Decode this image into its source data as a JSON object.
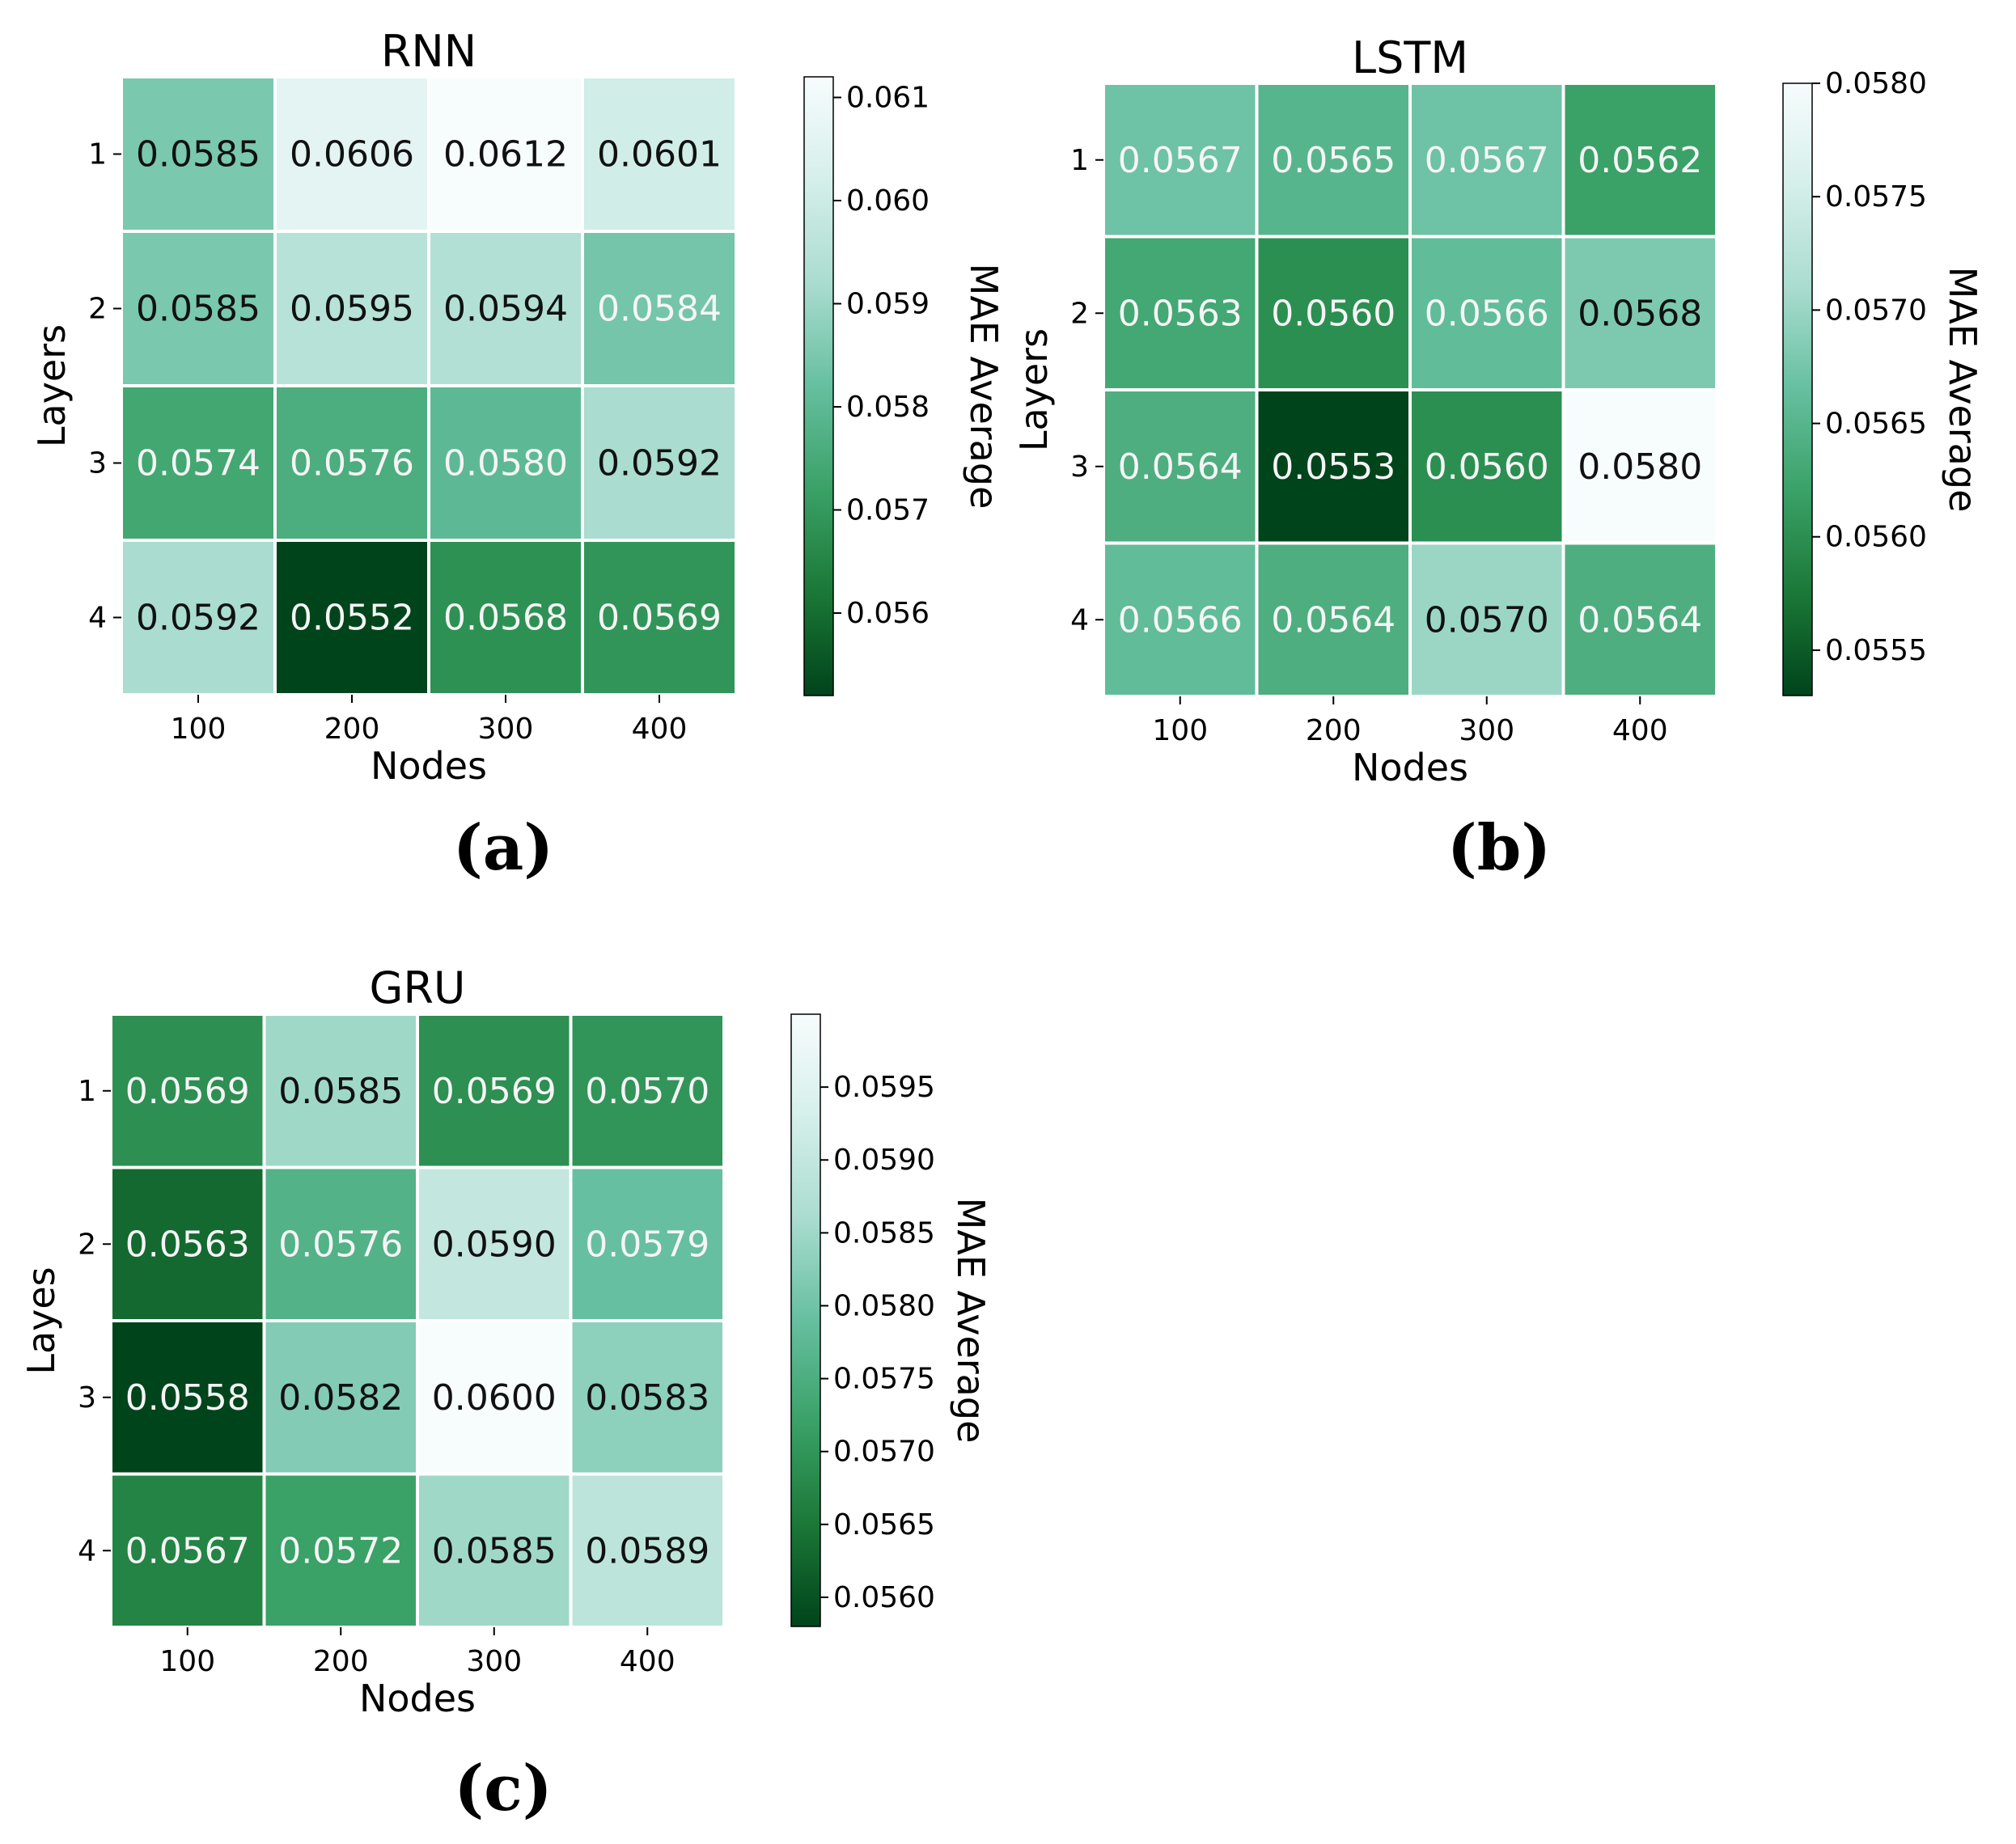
{
  "chart_data": [
    {
      "type": "heatmap",
      "title": "RNN",
      "panel_label": "(a)",
      "xlabel": "Nodes",
      "ylabel": "Layers",
      "x_categories": [
        "100",
        "200",
        "300",
        "400"
      ],
      "y_categories": [
        "1",
        "2",
        "3",
        "4"
      ],
      "values": [
        [
          0.0585,
          0.0606,
          0.0612,
          0.0601
        ],
        [
          0.0585,
          0.0595,
          0.0594,
          0.0584
        ],
        [
          0.0574,
          0.0576,
          0.058,
          0.0592
        ],
        [
          0.0592,
          0.0552,
          0.0568,
          0.0569
        ]
      ],
      "cell_labels": [
        [
          "0.0585",
          "0.0606",
          "0.0612",
          "0.0601"
        ],
        [
          "0.0585",
          "0.0595",
          "0.0594",
          "0.0584"
        ],
        [
          "0.0574",
          "0.0576",
          "0.0580",
          "0.0592"
        ],
        [
          "0.0592",
          "0.0552",
          "0.0568",
          "0.0569"
        ]
      ],
      "colorbar": {
        "label": "MAE Average",
        "range": [
          0.0552,
          0.0612
        ],
        "ticks": [
          0.056,
          0.057,
          0.058,
          0.059,
          0.06,
          0.061
        ],
        "tick_labels": [
          "0.056",
          "0.057",
          "0.058",
          "0.059",
          "0.060",
          "0.061"
        ]
      }
    },
    {
      "type": "heatmap",
      "title": "LSTM",
      "panel_label": "(b)",
      "xlabel": "Nodes",
      "ylabel": "Layers",
      "x_categories": [
        "100",
        "200",
        "300",
        "400"
      ],
      "y_categories": [
        "1",
        "2",
        "3",
        "4"
      ],
      "values": [
        [
          0.0567,
          0.0565,
          0.0567,
          0.0562
        ],
        [
          0.0563,
          0.056,
          0.0566,
          0.0568
        ],
        [
          0.0564,
          0.0553,
          0.056,
          0.058
        ],
        [
          0.0566,
          0.0564,
          0.057,
          0.0564
        ]
      ],
      "cell_labels": [
        [
          "0.0567",
          "0.0565",
          "0.0567",
          "0.0562"
        ],
        [
          "0.0563",
          "0.0560",
          "0.0566",
          "0.0568"
        ],
        [
          "0.0564",
          "0.0553",
          "0.0560",
          "0.0580"
        ],
        [
          "0.0566",
          "0.0564",
          "0.0570",
          "0.0564"
        ]
      ],
      "colorbar": {
        "label": "MAE Average",
        "range": [
          0.0553,
          0.058
        ],
        "ticks": [
          0.0555,
          0.056,
          0.0565,
          0.057,
          0.0575,
          0.058
        ],
        "tick_labels": [
          "0.0555",
          "0.0560",
          "0.0565",
          "0.0570",
          "0.0575",
          "0.0580"
        ]
      }
    },
    {
      "type": "heatmap",
      "title": "GRU",
      "panel_label": "(c)",
      "xlabel": "Nodes",
      "ylabel": "Layes",
      "x_categories": [
        "100",
        "200",
        "300",
        "400"
      ],
      "y_categories": [
        "1",
        "2",
        "3",
        "4"
      ],
      "values": [
        [
          0.0569,
          0.0585,
          0.0569,
          0.057
        ],
        [
          0.0563,
          0.0576,
          0.059,
          0.0579
        ],
        [
          0.0558,
          0.0582,
          0.06,
          0.0583
        ],
        [
          0.0567,
          0.0572,
          0.0585,
          0.0589
        ]
      ],
      "cell_labels": [
        [
          "0.0569",
          "0.0585",
          "0.0569",
          "0.0570"
        ],
        [
          "0.0563",
          "0.0576",
          "0.0590",
          "0.0579"
        ],
        [
          "0.0558",
          "0.0582",
          "0.0600",
          "0.0583"
        ],
        [
          "0.0567",
          "0.0572",
          "0.0585",
          "0.0589"
        ]
      ],
      "colorbar": {
        "label": "MAE Average",
        "range": [
          0.0558,
          0.06
        ],
        "ticks": [
          0.056,
          0.0565,
          0.057,
          0.0575,
          0.058,
          0.0585,
          0.059,
          0.0595
        ],
        "tick_labels": [
          "0.0560",
          "0.0565",
          "0.0570",
          "0.0575",
          "0.0580",
          "0.0585",
          "0.0590",
          "0.0595"
        ]
      }
    }
  ],
  "colormap": {
    "name": "Greens (reversed)",
    "stops": [
      "#00441b",
      "#1b7837",
      "#3aa167",
      "#66bfa0",
      "#aadccf",
      "#d5efea",
      "#f7fcfd"
    ]
  }
}
